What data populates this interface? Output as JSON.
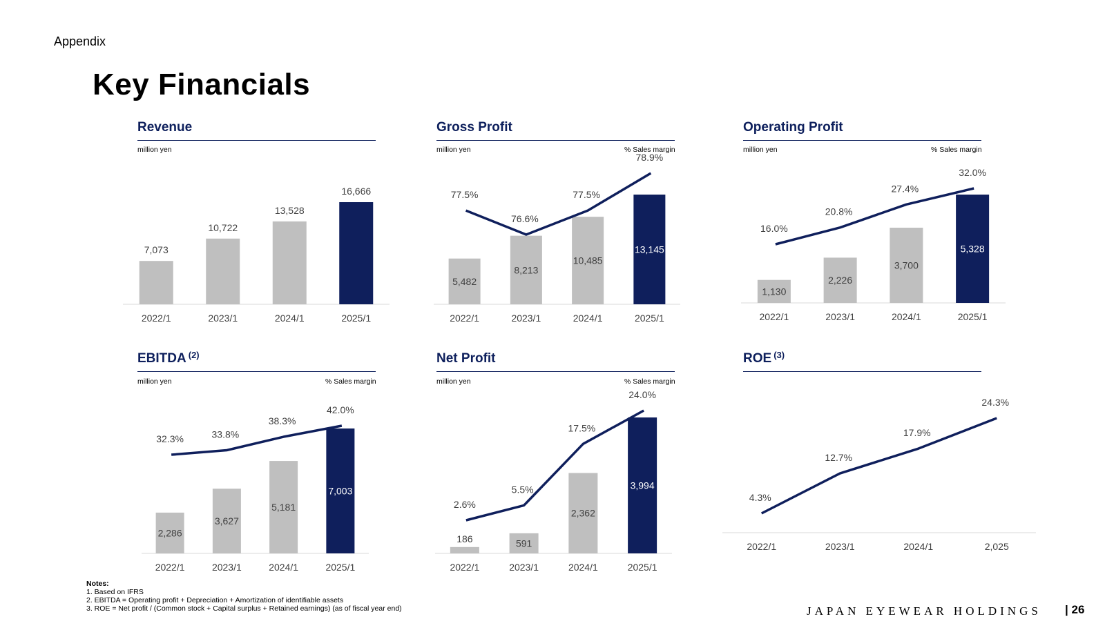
{
  "header": {
    "section": "Appendix",
    "title": "Key Financials"
  },
  "charts_meta": {
    "revenue": {
      "title": "Revenue",
      "sup": "",
      "unit": "million yen",
      "margin_label": ""
    },
    "gross_profit": {
      "title": "Gross Profit",
      "sup": "",
      "unit": "million yen",
      "margin_label": "% Sales margin"
    },
    "operating_profit": {
      "title": "Operating Profit",
      "sup": "",
      "unit": "million yen",
      "margin_label": "% Sales margin"
    },
    "ebitda": {
      "title": "EBITDA",
      "sup": "(2)",
      "unit": "million yen",
      "margin_label": "% Sales margin"
    },
    "net_profit": {
      "title": "Net Profit",
      "sup": "",
      "unit": "million yen",
      "margin_label": "% Sales margin"
    },
    "roe": {
      "title": "ROE",
      "sup": "(3)",
      "unit": "",
      "margin_label": ""
    }
  },
  "colors": {
    "bar_grey": "#bfbfbf",
    "bar_navy": "#0f1f5c",
    "line_navy": "#0f1f5c",
    "title_navy": "#0d1f5c",
    "axis": "#d9d9d9"
  },
  "chart_data": [
    {
      "id": "revenue",
      "type": "bar",
      "title": "Revenue",
      "categories": [
        "2022/1",
        "2023/1",
        "2024/1",
        "2025/1"
      ],
      "series": [
        {
          "name": "Revenue",
          "values": [
            7073,
            10722,
            13528,
            16666
          ],
          "labels": [
            "7,073",
            "10,722",
            "13,528",
            "16,666"
          ]
        }
      ]
    },
    {
      "id": "gross_profit",
      "type": "bar+line",
      "title": "Gross Profit",
      "categories": [
        "2022/1",
        "2023/1",
        "2024/1",
        "2025/1"
      ],
      "series": [
        {
          "name": "Gross Profit",
          "values": [
            5482,
            8213,
            10485,
            13145
          ],
          "labels": [
            "5,482",
            "8,213",
            "10,485",
            "13,145"
          ]
        },
        {
          "name": "% Sales margin",
          "values": [
            77.5,
            76.6,
            77.5,
            78.9
          ],
          "labels": [
            "77.5%",
            "76.6%",
            "77.5%",
            "78.9%"
          ]
        }
      ]
    },
    {
      "id": "operating_profit",
      "type": "bar+line",
      "title": "Operating Profit",
      "categories": [
        "2022/1",
        "2023/1",
        "2024/1",
        "2025/1"
      ],
      "series": [
        {
          "name": "Operating Profit",
          "values": [
            1130,
            2226,
            3700,
            5328
          ],
          "labels": [
            "1,130",
            "2,226",
            "3,700",
            "5,328"
          ]
        },
        {
          "name": "% Sales margin",
          "values": [
            16.0,
            20.8,
            27.4,
            32.0
          ],
          "labels": [
            "16.0%",
            "20.8%",
            "27.4%",
            "32.0%"
          ]
        }
      ]
    },
    {
      "id": "ebitda",
      "type": "bar+line",
      "title": "EBITDA",
      "categories": [
        "2022/1",
        "2023/1",
        "2024/1",
        "2025/1"
      ],
      "series": [
        {
          "name": "EBITDA",
          "values": [
            2286,
            3627,
            5181,
            7003
          ],
          "labels": [
            "2,286",
            "3,627",
            "5,181",
            "7,003"
          ]
        },
        {
          "name": "% Sales margin",
          "values": [
            32.3,
            33.8,
            38.3,
            42.0
          ],
          "labels": [
            "32.3%",
            "33.8%",
            "38.3%",
            "42.0%"
          ]
        }
      ]
    },
    {
      "id": "net_profit",
      "type": "bar+line",
      "title": "Net Profit",
      "categories": [
        "2022/1",
        "2023/1",
        "2024/1",
        "2025/1"
      ],
      "series": [
        {
          "name": "Net Profit",
          "values": [
            186,
            591,
            2362,
            3994
          ],
          "labels": [
            "186",
            "591",
            "2,362",
            "3,994"
          ]
        },
        {
          "name": "% Sales margin",
          "values": [
            2.6,
            5.5,
            17.5,
            24.0
          ],
          "labels": [
            "2.6%",
            "5.5%",
            "17.5%",
            "24.0%"
          ]
        }
      ]
    },
    {
      "id": "roe",
      "type": "line",
      "title": "ROE",
      "categories": [
        "2022/1",
        "2023/1",
        "2024/1",
        "2,025"
      ],
      "series": [
        {
          "name": "ROE",
          "values": [
            4.3,
            12.7,
            17.9,
            24.3
          ],
          "labels": [
            "4.3%",
            "12.7%",
            "17.9%",
            "24.3%"
          ]
        }
      ]
    }
  ],
  "notes": {
    "heading": "Notes:",
    "items": [
      "1.  Based on IFRS",
      "2.  EBITDA = Operating profit + Depreciation + Amortization of identifiable assets",
      "3.  ROE = Net profit / (Common stock + Capital surplus + Retained earnings) (as of fiscal year end)"
    ]
  },
  "footer": {
    "brand": "JAPAN EYEWEAR HOLDINGS",
    "separator": "|",
    "page": "26"
  }
}
